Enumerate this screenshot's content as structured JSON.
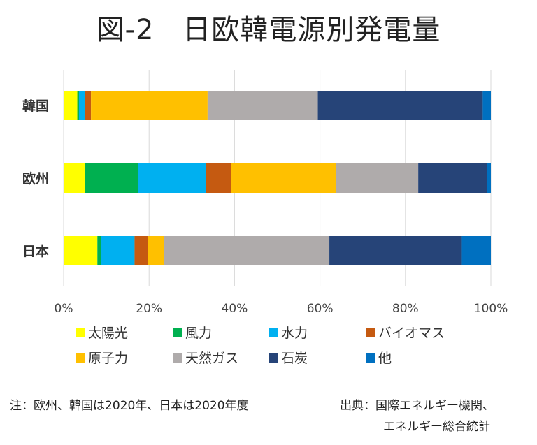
{
  "chart_data": {
    "type": "bar",
    "orientation": "horizontal",
    "stacked": true,
    "title": "図-2　日欧韓電源別発電量",
    "categories": [
      "韓国",
      "欧州",
      "日本"
    ],
    "xlim": [
      0,
      100
    ],
    "xticks": [
      "0%",
      "20%",
      "40%",
      "60%",
      "80%",
      "100%"
    ],
    "grid": true,
    "legend_position": "bottom",
    "series": [
      {
        "name": "太陽光",
        "color": "#ffff00",
        "values": [
          3.2,
          5.0,
          7.9
        ]
      },
      {
        "name": "風力",
        "color": "#00b050",
        "values": [
          0.4,
          12.4,
          0.9
        ]
      },
      {
        "name": "水力",
        "color": "#00b0f0",
        "values": [
          1.4,
          15.9,
          7.8
        ]
      },
      {
        "name": "バイオマス",
        "color": "#c55a11",
        "values": [
          1.4,
          5.9,
          3.2
        ]
      },
      {
        "name": "原子力",
        "color": "#ffc000",
        "values": [
          27.3,
          24.5,
          3.7
        ]
      },
      {
        "name": "天然ガス",
        "color": "#afabab",
        "values": [
          25.8,
          19.3,
          38.7
        ]
      },
      {
        "name": "石炭",
        "color": "#264478",
        "values": [
          38.6,
          16.1,
          31.0
        ]
      },
      {
        "name": "他",
        "color": "#0070c0",
        "values": [
          1.9,
          0.9,
          6.8
        ]
      }
    ]
  },
  "note": "注：欧州、韓国は2020年、日本は2020年度",
  "source_line1": "出典：国際エネルギー機関、",
  "source_line2": "エネルギー総合統計"
}
